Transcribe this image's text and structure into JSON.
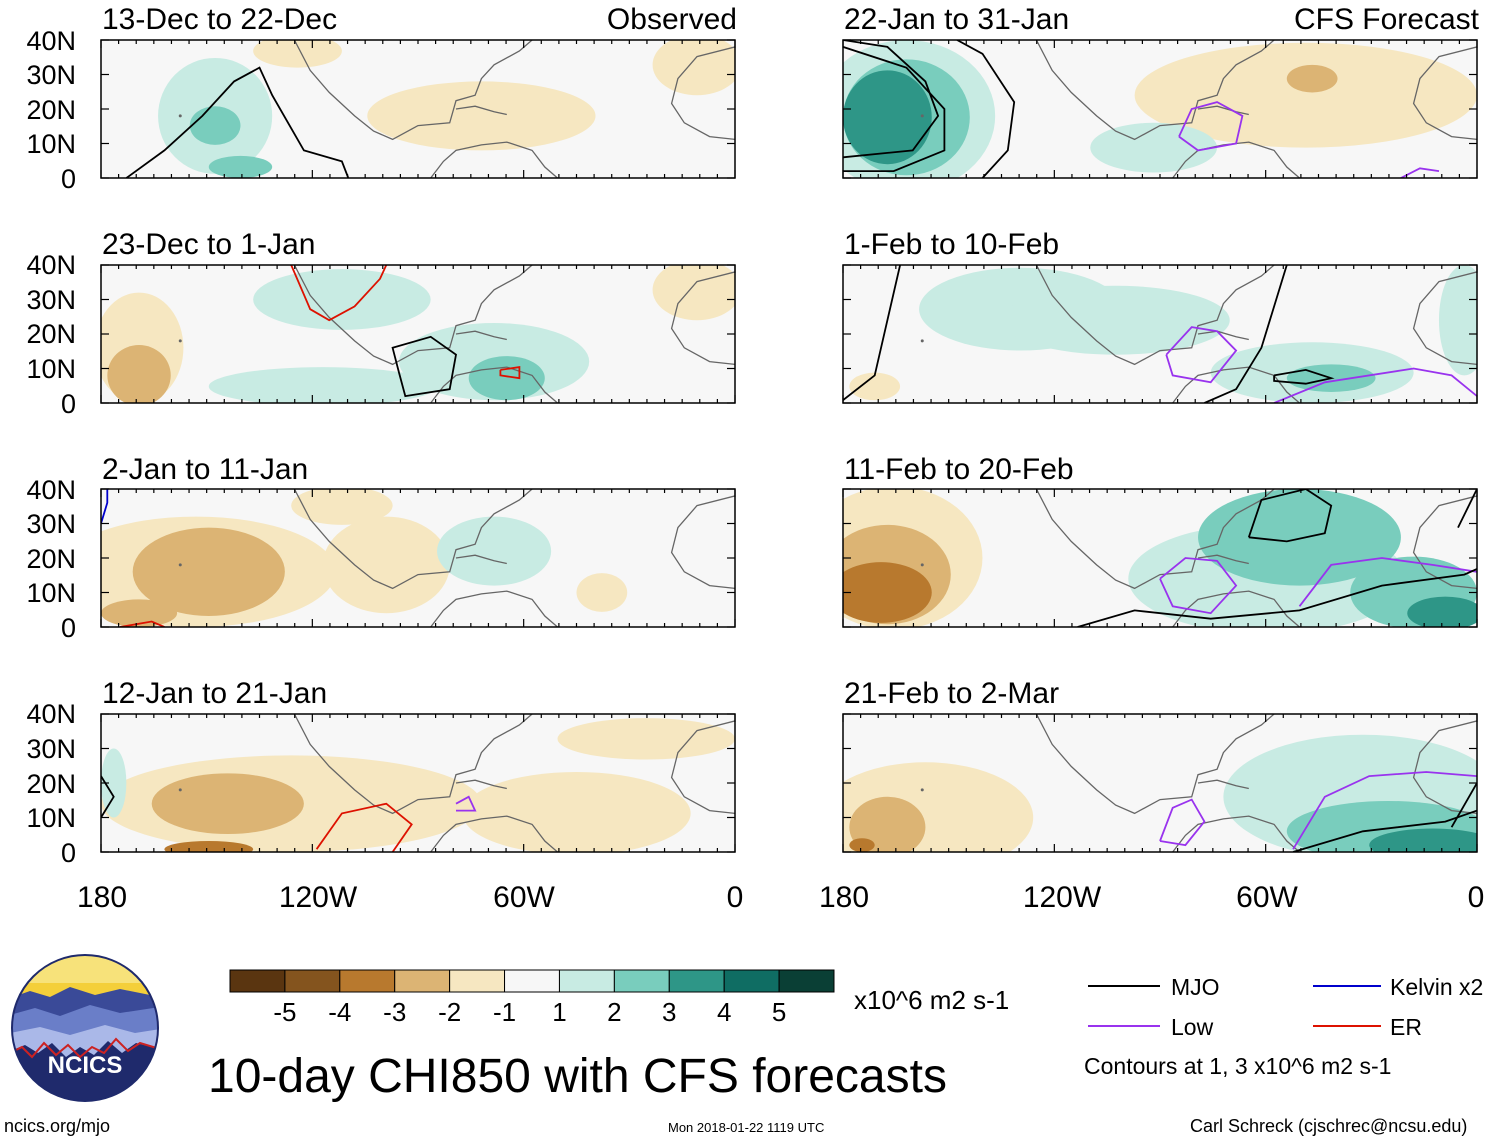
{
  "title": "10-day CHI850 with CFS forecasts",
  "site": "ncics.org/mjo",
  "timestamp": "Mon 2018-01-22 1119 UTC",
  "author": "Carl Schreck (cjschrec@ncsu.edu)",
  "logo_text": "NCICS",
  "panel_labels": {
    "observed": "Observed",
    "forecast": "CFS Forecast"
  },
  "panels": [
    {
      "id": "p1",
      "column": "left",
      "title": "13-Dec to 22-Dec"
    },
    {
      "id": "p2",
      "column": "left",
      "title": "23-Dec to 1-Jan"
    },
    {
      "id": "p3",
      "column": "left",
      "title": "2-Jan to 11-Jan"
    },
    {
      "id": "p4",
      "column": "left",
      "title": "12-Jan to 21-Jan"
    },
    {
      "id": "p5",
      "column": "right",
      "title": "22-Jan to 31-Jan"
    },
    {
      "id": "p6",
      "column": "right",
      "title": "1-Feb to 10-Feb"
    },
    {
      "id": "p7",
      "column": "right",
      "title": "11-Feb to 20-Feb"
    },
    {
      "id": "p8",
      "column": "right",
      "title": "21-Feb to 2-Mar"
    }
  ],
  "lat_labels": [
    "40N",
    "30N",
    "20N",
    "10N",
    "0"
  ],
  "lon_labels": [
    "180",
    "120W",
    "60W",
    "0"
  ],
  "colorbar": {
    "units": "x10^6 m2 s-1",
    "tick_labels": [
      "-5",
      "-4",
      "-3",
      "-2",
      "-1",
      "1",
      "2",
      "3",
      "4",
      "5"
    ],
    "colors": [
      "#5a3510",
      "#84541e",
      "#b8792e",
      "#dcb474",
      "#f6e7c1",
      "#f7f7f7",
      "#c8ebe3",
      "#79cdbd",
      "#2e9687",
      "#0f6d63",
      "#0a3f35"
    ]
  },
  "legend": {
    "items": [
      {
        "label": "MJO",
        "color": "#000000"
      },
      {
        "label": "Kelvin x2",
        "color": "#0000cc"
      },
      {
        "label": "Low",
        "color": "#9933ee"
      },
      {
        "label": "ER",
        "color": "#dd1100"
      }
    ],
    "note": "Contours at 1, 3 x10^6 m2 s-1"
  },
  "colors": {
    "neutral": "#f7f7f7",
    "land": "#666666"
  }
}
